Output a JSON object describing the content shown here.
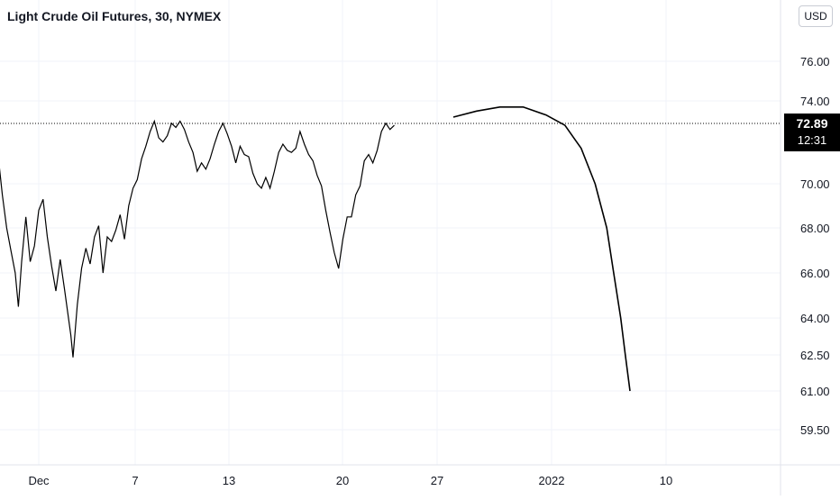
{
  "header": {
    "title": "Light Crude Oil Futures, 30, NYMEX",
    "currency_button": "USD"
  },
  "price_tag": {
    "price": "72.89",
    "countdown": "12:31"
  },
  "colors": {
    "line": "#000000",
    "grid": "#f0f3fa",
    "axis_text": "#131722",
    "price_line": "#000000"
  },
  "chart_data": {
    "type": "line",
    "symbol": "Light Crude Oil Futures",
    "interval": "30",
    "exchange": "NYMEX",
    "ylim": [
      57.0,
      78.2
    ],
    "yticks": [
      {
        "label": "76.00",
        "value": 76.0
      },
      {
        "label": "74.00",
        "value": 74.0
      },
      {
        "label": "70.00",
        "value": 70.0
      },
      {
        "label": "68.00",
        "value": 68.0
      },
      {
        "label": "66.00",
        "value": 66.0
      },
      {
        "label": "64.00",
        "value": 64.0
      },
      {
        "label": "62.50",
        "value": 62.5
      },
      {
        "label": "61.00",
        "value": 61.0
      },
      {
        "label": "59.50",
        "value": 59.5
      }
    ],
    "xticks": [
      {
        "label": "Dec",
        "day": 1
      },
      {
        "label": "7",
        "day": 7
      },
      {
        "label": "13",
        "day": 13
      },
      {
        "label": "20",
        "day": 20
      },
      {
        "label": "27",
        "day": 27
      },
      {
        "label": "2022",
        "day": 32
      },
      {
        "label": "10",
        "day": 41
      }
    ],
    "last_price": 72.89,
    "series": [
      {
        "values": [
          [
            -2.0,
            72.0
          ],
          [
            -1.7,
            71.3
          ],
          [
            -1.4,
            72.4
          ],
          [
            -1.1,
            70.8
          ],
          [
            -0.9,
            71.4
          ],
          [
            -0.7,
            69.5
          ],
          [
            -0.5,
            68.0
          ],
          [
            -0.3,
            67.0
          ],
          [
            -0.1,
            66.0
          ],
          [
            0.05,
            64.5
          ],
          [
            0.2,
            66.5
          ],
          [
            0.4,
            68.5
          ],
          [
            0.6,
            66.5
          ],
          [
            0.8,
            67.2
          ],
          [
            1.0,
            68.8
          ],
          [
            1.2,
            69.3
          ],
          [
            1.4,
            67.6
          ],
          [
            1.6,
            66.3
          ],
          [
            1.8,
            65.2
          ],
          [
            2.0,
            66.6
          ],
          [
            2.2,
            65.3
          ],
          [
            2.5,
            63.3
          ],
          [
            2.6,
            62.4
          ],
          [
            2.8,
            64.6
          ],
          [
            3.0,
            66.2
          ],
          [
            3.2,
            67.1
          ],
          [
            3.4,
            66.4
          ],
          [
            3.6,
            67.6
          ],
          [
            3.8,
            68.1
          ],
          [
            4.0,
            66.0
          ],
          [
            4.2,
            67.6
          ],
          [
            4.4,
            67.4
          ],
          [
            4.6,
            67.9
          ],
          [
            4.8,
            68.6
          ],
          [
            5.0,
            67.5
          ],
          [
            5.2,
            69.0
          ],
          [
            5.4,
            69.8
          ],
          [
            5.6,
            70.2
          ],
          [
            5.8,
            71.2
          ],
          [
            6.0,
            71.8
          ],
          [
            6.2,
            72.5
          ],
          [
            6.4,
            73.0
          ],
          [
            6.6,
            72.2
          ],
          [
            6.8,
            72.0
          ],
          [
            7.0,
            72.3
          ],
          [
            7.2,
            72.9
          ],
          [
            7.4,
            72.7
          ],
          [
            7.6,
            73.0
          ],
          [
            7.8,
            72.6
          ],
          [
            8.0,
            72.0
          ],
          [
            8.2,
            71.5
          ],
          [
            8.4,
            70.6
          ],
          [
            8.6,
            71.0
          ],
          [
            8.8,
            70.7
          ],
          [
            9.0,
            71.2
          ],
          [
            9.2,
            71.9
          ],
          [
            9.4,
            72.5
          ],
          [
            9.6,
            72.9
          ],
          [
            9.8,
            72.4
          ],
          [
            10.0,
            71.8
          ],
          [
            10.2,
            71.0
          ],
          [
            10.4,
            71.8
          ],
          [
            10.6,
            71.4
          ],
          [
            10.8,
            71.3
          ],
          [
            11.0,
            70.5
          ],
          [
            11.2,
            70.0
          ],
          [
            11.4,
            69.8
          ],
          [
            11.6,
            70.3
          ],
          [
            11.8,
            69.8
          ],
          [
            12.0,
            70.6
          ],
          [
            12.2,
            71.5
          ],
          [
            12.4,
            71.9
          ],
          [
            12.6,
            71.6
          ],
          [
            12.8,
            71.5
          ],
          [
            13.0,
            71.7
          ],
          [
            13.2,
            72.5
          ],
          [
            13.4,
            71.9
          ],
          [
            13.6,
            71.4
          ],
          [
            13.8,
            71.1
          ],
          [
            14.0,
            70.4
          ],
          [
            14.2,
            69.9
          ],
          [
            14.4,
            68.8
          ],
          [
            14.6,
            67.8
          ],
          [
            14.8,
            66.9
          ],
          [
            15.0,
            66.2
          ],
          [
            15.2,
            67.5
          ],
          [
            15.4,
            68.5
          ],
          [
            15.6,
            68.5
          ],
          [
            15.8,
            69.5
          ],
          [
            16.0,
            69.9
          ],
          [
            16.2,
            71.1
          ],
          [
            16.4,
            71.4
          ],
          [
            16.6,
            71.0
          ],
          [
            16.8,
            71.6
          ],
          [
            17.0,
            72.5
          ],
          [
            17.2,
            72.9
          ],
          [
            17.4,
            72.6
          ],
          [
            17.6,
            72.8
          ]
        ]
      },
      {
        "values": [
          [
            18.5,
            73.2
          ],
          [
            19.5,
            73.5
          ],
          [
            20.5,
            73.7
          ],
          [
            21.5,
            73.7
          ],
          [
            22.5,
            73.3
          ],
          [
            23.3,
            72.8
          ],
          [
            24.0,
            71.7
          ],
          [
            24.6,
            70.0
          ],
          [
            25.1,
            68.0
          ],
          [
            25.4,
            66.0
          ],
          [
            25.7,
            64.0
          ],
          [
            25.9,
            62.5
          ],
          [
            26.1,
            61.0
          ]
        ]
      }
    ]
  }
}
